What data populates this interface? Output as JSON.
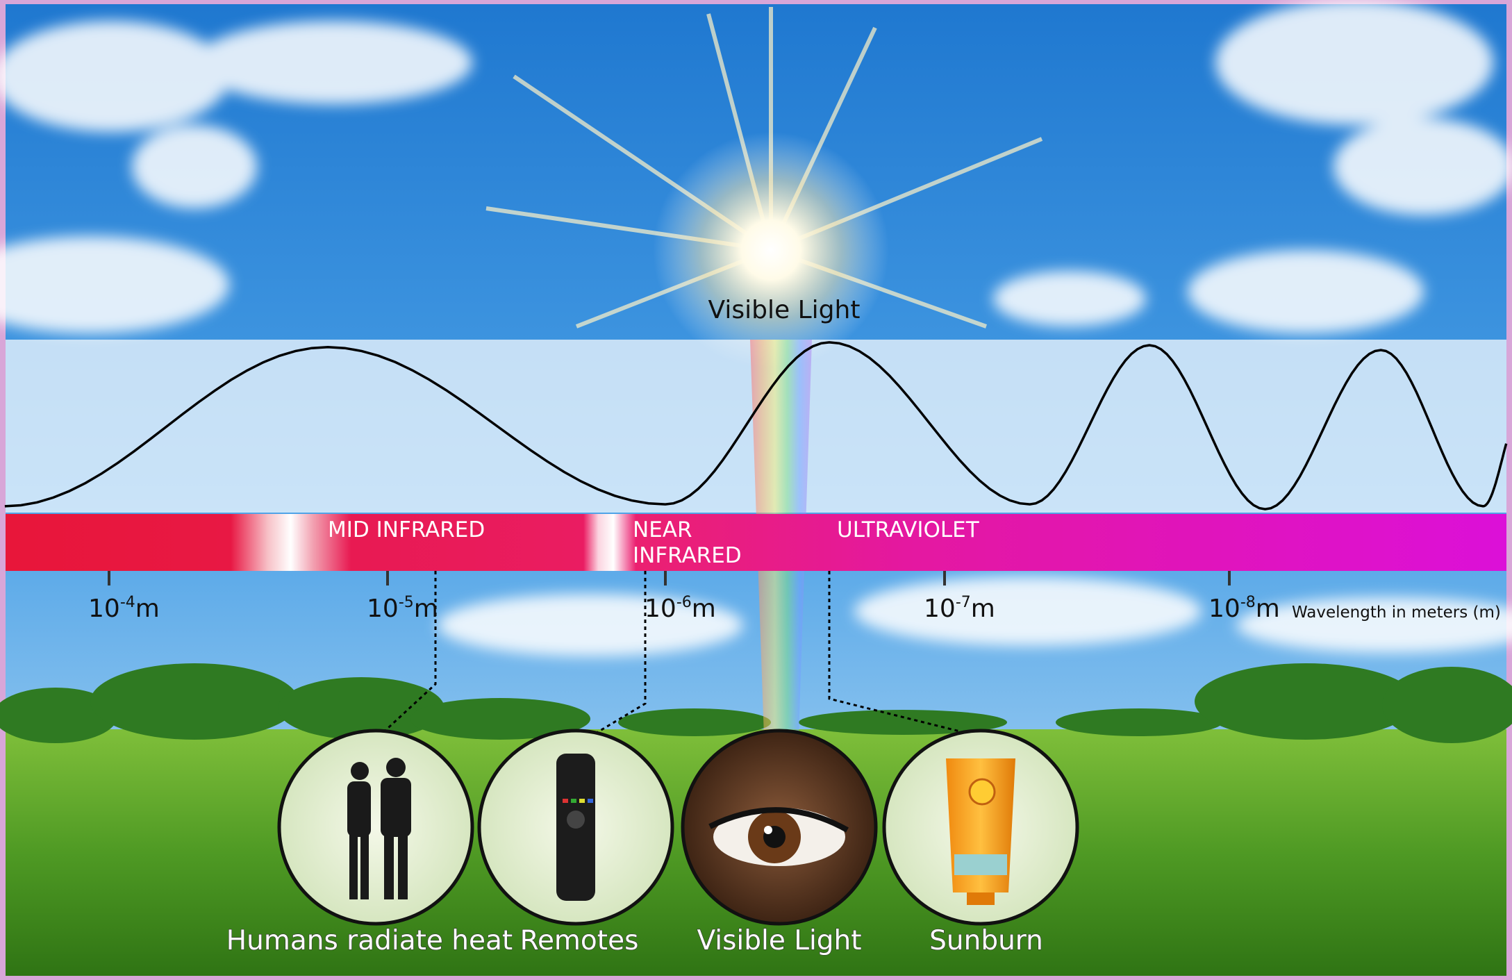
{
  "title": "Visible Light",
  "bands": [
    {
      "lines": [
        "MID INFRARED"
      ]
    },
    {
      "lines": [
        "NEAR",
        "INFRARED"
      ]
    },
    {
      "lines": [
        "ULTRAVIOLET"
      ]
    }
  ],
  "ticks": [
    {
      "base": "10",
      "exponent": "-4",
      "unit": "m"
    },
    {
      "base": "10",
      "exponent": "-5",
      "unit": "m"
    },
    {
      "base": "10",
      "exponent": "-6",
      "unit": "m"
    },
    {
      "base": "10",
      "exponent": "-7",
      "unit": "m"
    },
    {
      "base": "10",
      "exponent": "-8",
      "unit": "m"
    }
  ],
  "axis_label": "Wavelength in meters (m)",
  "examples": [
    "Humans radiate heat",
    "Remotes",
    "Visible Light",
    "Sunburn"
  ]
}
